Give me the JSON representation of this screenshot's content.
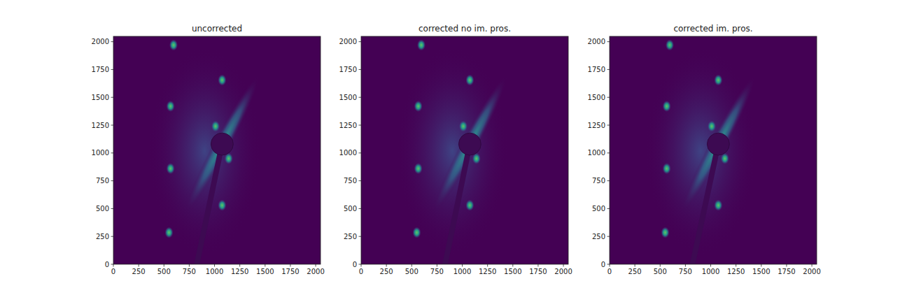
{
  "chart_data": [
    {
      "type": "image",
      "title": "uncorrected",
      "xlim": [
        0,
        2048
      ],
      "ylim": [
        0,
        2048
      ],
      "xticks": [
        0,
        250,
        500,
        750,
        1000,
        1250,
        1500,
        1750,
        2000
      ],
      "yticks": [
        0,
        250,
        500,
        750,
        1000,
        1250,
        1500,
        1750,
        2000
      ],
      "spots": {
        "x": [
          595,
          1075,
          565,
          565,
          1075,
          550,
          1010,
          1140
        ],
        "y": [
          1970,
          1655,
          1420,
          860,
          530,
          285,
          1240,
          950
        ]
      },
      "beamstop": {
        "x": 1075,
        "y": 1080,
        "r": 110,
        "rod_x": 825
      }
    },
    {
      "type": "image",
      "title": "corrected no im. pros.",
      "xlim": [
        0,
        2048
      ],
      "ylim": [
        0,
        2048
      ],
      "xticks": [
        0,
        250,
        500,
        750,
        1000,
        1250,
        1500,
        1750,
        2000
      ],
      "yticks": [
        0,
        250,
        500,
        750,
        1000,
        1250,
        1500,
        1750,
        2000
      ],
      "spots": {
        "x": [
          595,
          1075,
          565,
          565,
          1075,
          550,
          1010,
          1140
        ],
        "y": [
          1970,
          1655,
          1420,
          860,
          530,
          285,
          1240,
          950
        ]
      },
      "beamstop": {
        "x": 1075,
        "y": 1080,
        "r": 110,
        "rod_x": 830
      }
    },
    {
      "type": "image",
      "title": "corrected im. pros.",
      "xlim": [
        0,
        2048
      ],
      "ylim": [
        0,
        2048
      ],
      "xticks": [
        0,
        250,
        500,
        750,
        1000,
        1250,
        1500,
        1750,
        2000
      ],
      "yticks": [
        0,
        250,
        500,
        750,
        1000,
        1250,
        1500,
        1750,
        2000
      ],
      "spots": {
        "x": [
          595,
          1075,
          565,
          565,
          1075,
          550,
          1010,
          1140
        ],
        "y": [
          1970,
          1655,
          1420,
          860,
          530,
          285,
          1240,
          950
        ]
      },
      "beamstop": {
        "x": 1075,
        "y": 1080,
        "r": 110,
        "rod_x": 820
      }
    }
  ]
}
